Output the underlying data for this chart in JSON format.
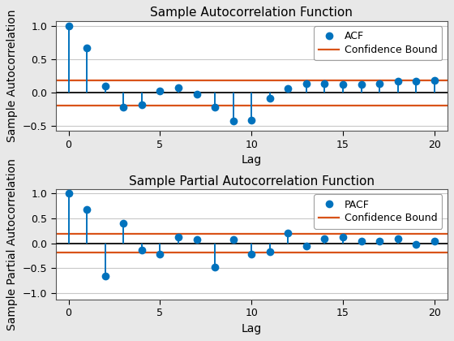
{
  "acf_values": [
    1.0,
    0.67,
    0.1,
    -0.22,
    -0.18,
    0.03,
    0.07,
    -0.02,
    -0.22,
    -0.43,
    -0.42,
    -0.08,
    0.06,
    0.13,
    0.13,
    0.12,
    0.12,
    0.13,
    0.17,
    0.17,
    0.18
  ],
  "pacf_values": [
    1.0,
    0.67,
    -0.65,
    0.4,
    -0.13,
    -0.22,
    0.13,
    0.08,
    -0.47,
    0.07,
    -0.22,
    -0.16,
    0.2,
    -0.06,
    0.1,
    0.12,
    0.05,
    0.04,
    0.1,
    -0.02,
    0.04
  ],
  "lags": [
    0,
    1,
    2,
    3,
    4,
    5,
    6,
    7,
    8,
    9,
    10,
    11,
    12,
    13,
    14,
    15,
    16,
    17,
    18,
    19,
    20
  ],
  "conf_bound": 0.19,
  "stem_color": "#0072BD",
  "marker_color": "#0072BD",
  "conf_color": "#D95319",
  "baseline_color": "#1a1a1a",
  "acf_title": "Sample Autocorrelation Function",
  "pacf_title": "Sample Partial Autocorrelation Function",
  "xlabel": "Lag",
  "acf_ylabel": "Sample Autocorrelation",
  "pacf_ylabel": "Sample Partial Autocorrelation",
  "acf_ylim": [
    -0.58,
    1.08
  ],
  "pacf_ylim": [
    -1.12,
    1.08
  ],
  "acf_yticks": [
    -0.5,
    0.0,
    0.5,
    1.0
  ],
  "pacf_yticks": [
    -1.0,
    -0.5,
    0.0,
    0.5,
    1.0
  ],
  "acf_legend_label": "ACF",
  "pacf_legend_label": "PACF",
  "conf_legend_label": "Confidence Bound",
  "fig_facecolor": "#e8e8e8",
  "axes_facecolor": "#ffffff",
  "grid_color": "#c8c8c8",
  "title_fontsize": 11,
  "label_fontsize": 10,
  "tick_fontsize": 9,
  "legend_fontsize": 9,
  "stem_linewidth": 1.4,
  "conf_linewidth": 1.6,
  "baseline_linewidth": 1.4,
  "marker_size": 7
}
